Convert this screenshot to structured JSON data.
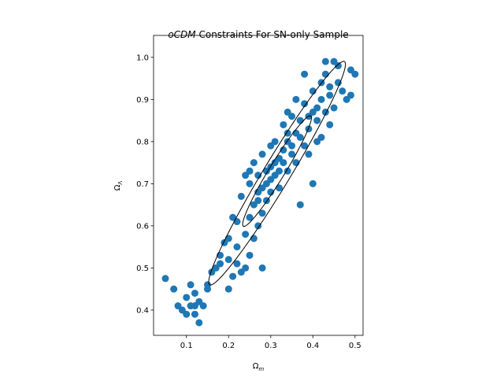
{
  "chart_data": {
    "type": "scatter",
    "title": {
      "italic": "oCDM",
      "text": "Constraints For SN-only Sample"
    },
    "xlabel": {
      "symbol": "Ω",
      "subscript": "m"
    },
    "ylabel": {
      "symbol": "Ω",
      "subscript": "Λ"
    },
    "xlim": [
      0.022,
      0.519
    ],
    "ylim": [
      0.34,
      1.052
    ],
    "xticks": [
      0.1,
      0.2,
      0.3,
      0.4,
      0.5
    ],
    "yticks": [
      0.4,
      0.5,
      0.6,
      0.7,
      0.8,
      0.9,
      {
        "value": 1,
        "label": "1.0"
      }
    ],
    "color": "#1f77b4",
    "x": [
      0.05,
      0.07,
      0.08,
      0.09,
      0.1,
      0.1,
      0.11,
      0.11,
      0.12,
      0.12,
      0.13,
      0.13,
      0.12,
      0.15,
      0.15,
      0.14,
      0.17,
      0.18,
      0.19,
      0.2,
      0.2,
      0.21,
      0.22,
      0.22,
      0.23,
      0.24,
      0.24,
      0.25,
      0.25,
      0.26,
      0.26,
      0.27,
      0.28,
      0.27,
      0.28,
      0.22,
      0.21,
      0.23,
      0.24,
      0.25,
      0.26,
      0.27,
      0.28,
      0.29,
      0.29,
      0.3,
      0.3,
      0.31,
      0.31,
      0.32,
      0.32,
      0.33,
      0.33,
      0.34,
      0.34,
      0.35,
      0.35,
      0.36,
      0.36,
      0.37,
      0.37,
      0.38,
      0.38,
      0.39,
      0.39,
      0.4,
      0.4,
      0.4,
      0.41,
      0.41,
      0.42,
      0.42,
      0.43,
      0.43,
      0.44,
      0.44,
      0.45,
      0.45,
      0.46,
      0.46,
      0.47,
      0.48,
      0.49,
      0.49,
      0.5,
      0.43,
      0.38,
      0.36,
      0.34,
      0.3,
      0.29,
      0.27,
      0.32,
      0.33,
      0.35,
      0.3,
      0.31,
      0.28,
      0.34,
      0.37,
      0.39,
      0.41,
      0.25,
      0.2,
      0.18,
      0.16,
      0.44,
      0.42
    ],
    "y": [
      0.475,
      0.45,
      0.41,
      0.4,
      0.43,
      0.39,
      0.41,
      0.46,
      0.44,
      0.41,
      0.42,
      0.37,
      0.39,
      0.45,
      0.46,
      0.41,
      0.5,
      0.53,
      0.56,
      0.52,
      0.45,
      0.48,
      0.51,
      0.55,
      0.49,
      0.5,
      0.58,
      0.53,
      0.62,
      0.57,
      0.65,
      0.6,
      0.5,
      0.68,
      0.63,
      0.61,
      0.62,
      0.67,
      0.72,
      0.7,
      0.75,
      0.72,
      0.77,
      0.7,
      0.66,
      0.74,
      0.68,
      0.8,
      0.72,
      0.76,
      0.69,
      0.84,
      0.78,
      0.73,
      0.8,
      0.77,
      0.86,
      0.82,
      0.75,
      0.65,
      0.85,
      0.79,
      0.89,
      0.83,
      0.77,
      0.7,
      0.87,
      0.92,
      0.85,
      0.8,
      0.9,
      0.94,
      0.87,
      0.96,
      0.91,
      0.93,
      0.99,
      0.88,
      0.94,
      0.98,
      0.92,
      0.9,
      0.97,
      0.91,
      0.96,
      0.99,
      0.96,
      0.9,
      0.87,
      0.79,
      0.73,
      0.66,
      0.73,
      0.75,
      0.79,
      0.71,
      0.75,
      0.69,
      0.82,
      0.81,
      0.86,
      0.88,
      0.73,
      0.57,
      0.51,
      0.49,
      0.84,
      0.81
    ],
    "ellipses": [
      {
        "center": [
          0.315,
          0.73
        ],
        "axis1": [
          0.08,
          0.131
        ],
        "axis2": [
          0.016,
          -0.0098
        ]
      },
      {
        "center": [
          0.315,
          0.725
        ],
        "axis1": [
          0.16,
          0.265
        ],
        "axis2": [
          0.027,
          -0.0166
        ]
      }
    ]
  }
}
